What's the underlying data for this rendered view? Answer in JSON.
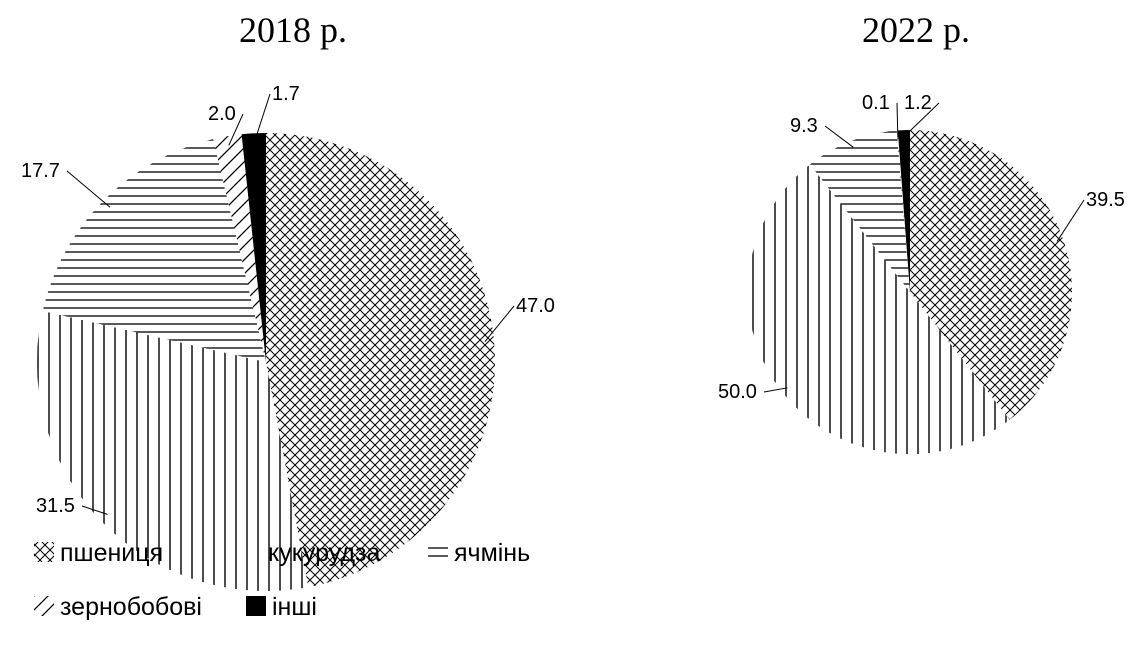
{
  "chart_data": [
    {
      "type": "pie",
      "title": "2018 р.",
      "categories": [
        "пшениця",
        "кукурудза",
        "ячмінь",
        "зернобобові",
        "інші"
      ],
      "values": [
        47.0,
        31.5,
        17.7,
        2.0,
        1.7
      ],
      "data_labels": [
        "47.0",
        "31.5",
        "17.7",
        "2.0",
        "1.7"
      ]
    },
    {
      "type": "pie",
      "title": "2022 р.",
      "categories": [
        "пшениця",
        "кукурудза",
        "ячмінь",
        "зернобобові",
        "інші"
      ],
      "values": [
        39.5,
        50.0,
        9.3,
        0.1,
        1.2
      ],
      "data_labels": [
        "39.5",
        "50.0",
        "9.3",
        "0.1",
        "1.2"
      ]
    }
  ],
  "legend": {
    "placement": "bottom-left",
    "items": [
      {
        "label": "пшениця",
        "pattern": "crosshatch"
      },
      {
        "label": "кукурудза",
        "pattern": "vertical-lines"
      },
      {
        "label": "ячмінь",
        "pattern": "horizontal-lines"
      },
      {
        "label": "зернобобові",
        "pattern": "diagonal-lines"
      },
      {
        "label": "інші",
        "pattern": "solid-black"
      }
    ]
  },
  "colors": {
    "ink": "#000000",
    "background": "#ffffff"
  }
}
